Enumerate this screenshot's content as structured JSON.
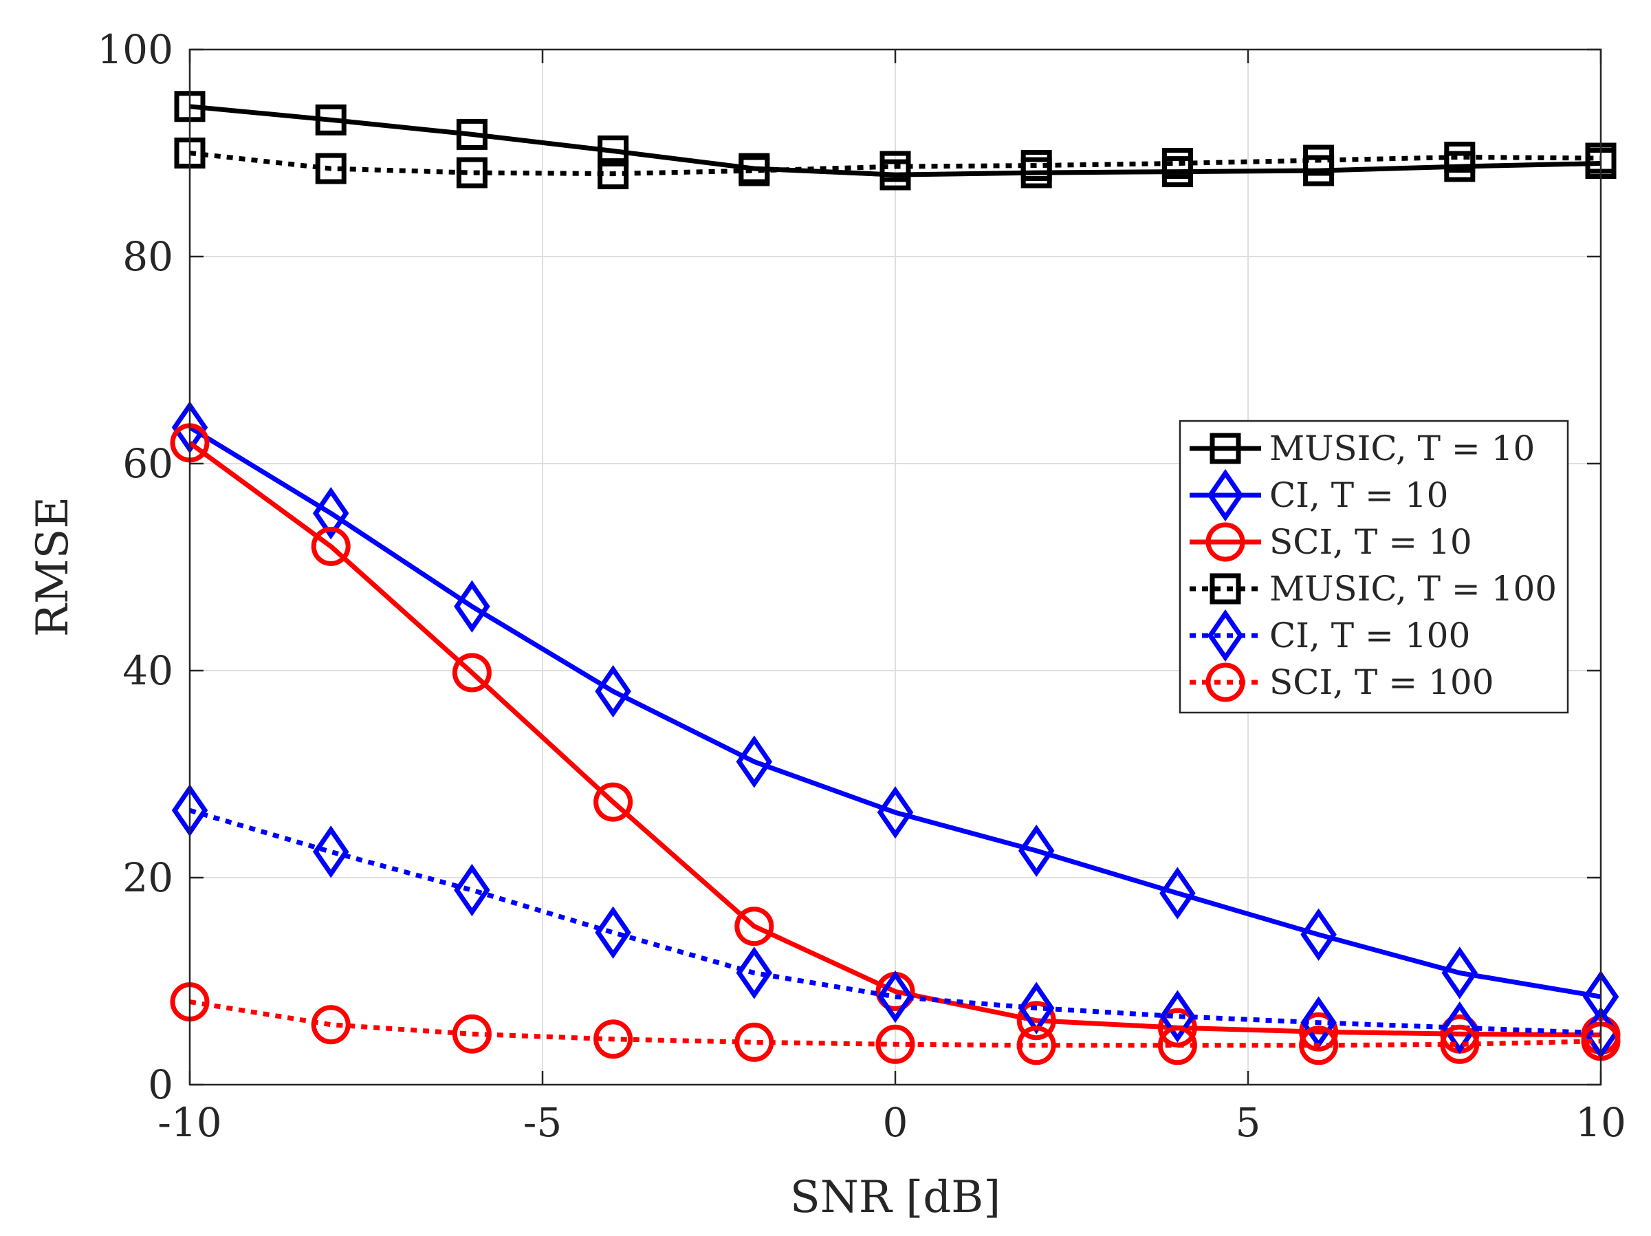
{
  "chart_data": {
    "type": "line",
    "title": "",
    "xlabel": "SNR [dB]",
    "ylabel": "RMSE",
    "xlim": [
      -10,
      10
    ],
    "ylim": [
      0,
      100
    ],
    "xticks": [
      -10,
      -5,
      0,
      5,
      10
    ],
    "yticks": [
      0,
      20,
      40,
      60,
      80,
      100
    ],
    "xtick_labels": [
      "-10",
      "-5",
      "0",
      "5",
      "10"
    ],
    "ytick_labels": [
      "0",
      "20",
      "40",
      "60",
      "80",
      "100"
    ],
    "grid": true,
    "legend_position": "center-right",
    "x": [
      -10,
      -8,
      -6,
      -4,
      -2,
      0,
      2,
      4,
      6,
      8,
      10
    ],
    "series": [
      {
        "name": "MUSIC, T = 10",
        "color": "#000000",
        "line": "solid",
        "marker": "square",
        "values": [
          94.5,
          93.2,
          91.8,
          90.2,
          88.5,
          87.9,
          88.1,
          88.2,
          88.3,
          88.7,
          89.0
        ]
      },
      {
        "name": "CI, T = 10",
        "color": "#0000ff",
        "line": "solid",
        "marker": "diamond",
        "values": [
          63.5,
          55.2,
          46.2,
          38.0,
          31.2,
          26.3,
          22.6,
          18.5,
          14.5,
          10.8,
          8.5
        ]
      },
      {
        "name": "SCI, T = 10",
        "color": "#ff0000",
        "line": "solid",
        "marker": "circle",
        "values": [
          62.0,
          52.0,
          39.8,
          27.3,
          15.3,
          9.0,
          6.2,
          5.5,
          5.1,
          4.9,
          4.8
        ]
      },
      {
        "name": "MUSIC, T = 100",
        "color": "#000000",
        "line": "dotted",
        "marker": "square",
        "values": [
          90.0,
          88.5,
          88.1,
          88.0,
          88.3,
          88.7,
          88.8,
          89.0,
          89.3,
          89.6,
          89.5
        ]
      },
      {
        "name": "CI, T = 100",
        "color": "#0000ff",
        "line": "dotted",
        "marker": "diamond",
        "values": [
          26.5,
          22.5,
          18.8,
          14.7,
          10.8,
          8.5,
          7.4,
          6.6,
          6.0,
          5.5,
          5.0
        ]
      },
      {
        "name": "SCI, T = 100",
        "color": "#ff0000",
        "line": "dotted",
        "marker": "circle",
        "values": [
          8.0,
          5.8,
          4.9,
          4.4,
          4.1,
          3.9,
          3.8,
          3.8,
          3.8,
          3.9,
          4.2
        ]
      }
    ]
  }
}
